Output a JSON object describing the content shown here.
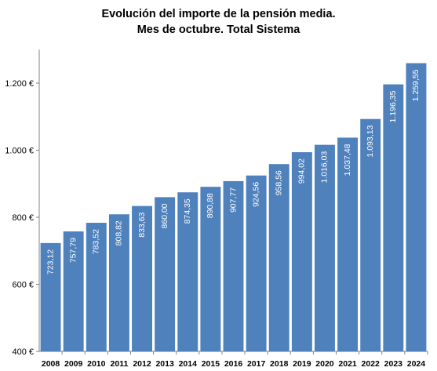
{
  "chart_data": {
    "type": "bar",
    "title": "Evolución del importe de la pensión media.",
    "subtitle": "Mes de octubre. Total Sistema",
    "categories": [
      "2008",
      "2009",
      "2010",
      "2011",
      "2012",
      "2013",
      "2014",
      "2015",
      "2016",
      "2017",
      "2018",
      "2019",
      "2020",
      "2021",
      "2022",
      "2023",
      "2024"
    ],
    "values": [
      723.12,
      757.79,
      783.52,
      808.82,
      833.63,
      860.0,
      874.35,
      890.88,
      907.77,
      924.56,
      958.56,
      994.02,
      1016.03,
      1037.48,
      1093.13,
      1196.35,
      1259.55
    ],
    "value_labels": [
      "723,12",
      "757,79",
      "783,52",
      "808,82",
      "833,63",
      "860,00",
      "874,35",
      "890,88",
      "907,77",
      "924,56",
      "958,56",
      "994,02",
      "1.016,03",
      "1.037,48",
      "1.093,13",
      "1.196,35",
      "1.259,55"
    ],
    "yticks": [
      400,
      600,
      800,
      1000,
      1200
    ],
    "ytick_labels": [
      "400 €",
      "600 €",
      "800 €",
      "1.000 €",
      "1.200 €"
    ],
    "ylim": [
      400,
      1300
    ],
    "xlabel": "",
    "ylabel": "",
    "grid": false,
    "legend": "none",
    "bar_color": "#4f81bd"
  }
}
